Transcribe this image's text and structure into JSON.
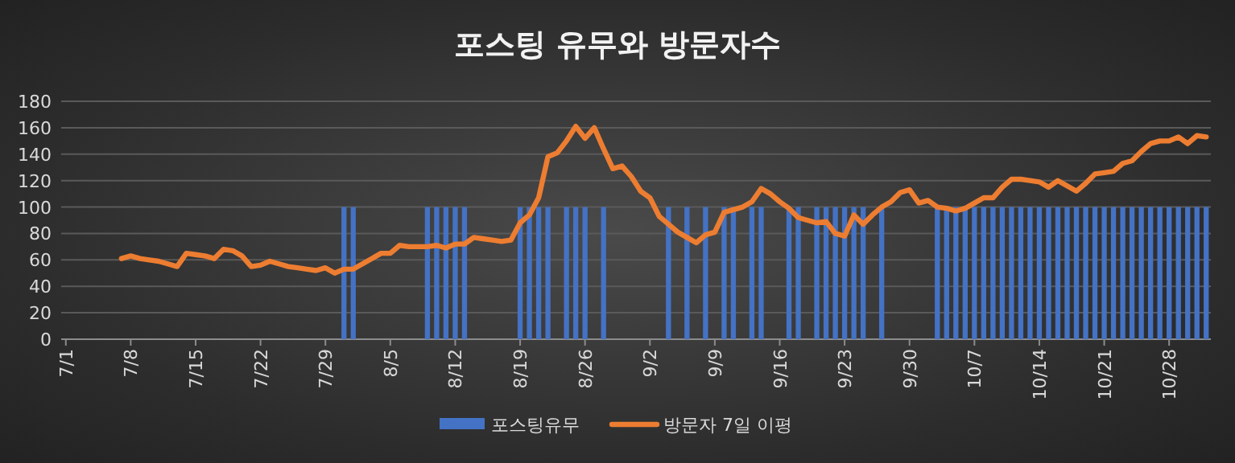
{
  "chart_data": {
    "type": "bar",
    "title": "포스팅 유무와 방문자수",
    "categories": [
      "7/1",
      null,
      null,
      null,
      null,
      null,
      null,
      "7/8",
      null,
      null,
      null,
      null,
      null,
      null,
      "7/15",
      null,
      null,
      null,
      null,
      null,
      null,
      "7/22",
      null,
      null,
      null,
      null,
      null,
      null,
      "7/29",
      null,
      null,
      null,
      null,
      null,
      null,
      "8/5",
      null,
      null,
      null,
      null,
      null,
      null,
      "8/12",
      null,
      null,
      null,
      null,
      null,
      null,
      "8/19",
      null,
      null,
      null,
      null,
      null,
      null,
      "8/26",
      null,
      null,
      null,
      null,
      null,
      null,
      "9/2",
      null,
      null,
      null,
      null,
      null,
      null,
      "9/9",
      null,
      null,
      null,
      null,
      null,
      null,
      "9/16",
      null,
      null,
      null,
      null,
      null,
      null,
      "9/23",
      null,
      null,
      null,
      null,
      null,
      null,
      "9/30",
      null,
      null,
      null,
      null,
      null,
      null,
      "10/7",
      null,
      null,
      null,
      null,
      null,
      null,
      "10/14",
      null,
      null,
      null,
      null,
      null,
      null,
      "10/21",
      null,
      null,
      null,
      null,
      null,
      null,
      "10/28",
      null,
      null,
      null,
      null
    ],
    "series": [
      {
        "name": "포스팅유무",
        "color": "#4472c4",
        "values": [
          null,
          null,
          null,
          null,
          null,
          null,
          null,
          null,
          null,
          null,
          null,
          null,
          null,
          null,
          null,
          null,
          null,
          null,
          null,
          null,
          null,
          null,
          null,
          null,
          null,
          null,
          null,
          null,
          null,
          null,
          100,
          100,
          null,
          null,
          null,
          null,
          null,
          null,
          null,
          100,
          100,
          100,
          100,
          100,
          null,
          null,
          null,
          null,
          null,
          100,
          100,
          100,
          100,
          null,
          100,
          100,
          100,
          null,
          100,
          null,
          null,
          null,
          null,
          null,
          null,
          100,
          null,
          100,
          null,
          100,
          null,
          100,
          100,
          null,
          100,
          100,
          null,
          null,
          100,
          100,
          null,
          100,
          100,
          100,
          100,
          100,
          100,
          null,
          100,
          null,
          null,
          null,
          null,
          null,
          100,
          100,
          100,
          100,
          100,
          100,
          100,
          100,
          100,
          100,
          100,
          100,
          100,
          100,
          100,
          100,
          100,
          100,
          100,
          100,
          100,
          100,
          100,
          100,
          100,
          100,
          100,
          100,
          100,
          100
        ]
      },
      {
        "name": "방문자 7일 이평",
        "type": "line",
        "color": "#ed7d31",
        "values": [
          null,
          null,
          null,
          null,
          null,
          null,
          61,
          63,
          61,
          60,
          59,
          57,
          55,
          65,
          64,
          63,
          61,
          68,
          67,
          63,
          55,
          56,
          59,
          57,
          55,
          54,
          53,
          52,
          54,
          50,
          53,
          53,
          57,
          61,
          65,
          65,
          71,
          70,
          70,
          70,
          71,
          69,
          72,
          72,
          77,
          76,
          75,
          74,
          75,
          88,
          94,
          107,
          138,
          141,
          150,
          161,
          152,
          160,
          144,
          129,
          131,
          123,
          112,
          107,
          93,
          87,
          81,
          77,
          73,
          79,
          81,
          96,
          98,
          100,
          104,
          114,
          110,
          104,
          99,
          92,
          90,
          88,
          89,
          80,
          78,
          94,
          87,
          94,
          100,
          104,
          111,
          113,
          103,
          105,
          100,
          99,
          97,
          99,
          103,
          107,
          107,
          115,
          121,
          121,
          120,
          119,
          115,
          120,
          116,
          112,
          118,
          125,
          126,
          127,
          133,
          135,
          142,
          148,
          150,
          150,
          153,
          148,
          154,
          153
        ]
      }
    ],
    "ylim": [
      0,
      180
    ],
    "yticks": [
      0,
      20,
      40,
      60,
      80,
      100,
      120,
      140,
      160,
      180
    ],
    "grid": "y",
    "legend": "bottom"
  }
}
